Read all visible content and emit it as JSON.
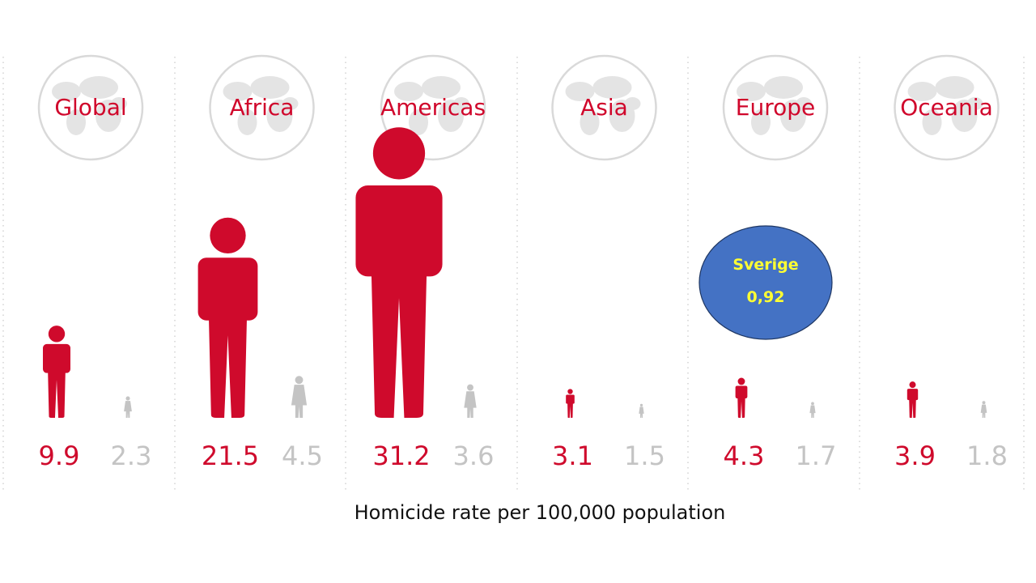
{
  "chart_data": {
    "type": "bar",
    "caption": "Homicide rate per 100,000 population",
    "categories": [
      "Global",
      "Africa",
      "Americas",
      "Asia",
      "Europe",
      "Oceania"
    ],
    "series": [
      {
        "values": [
          9.9,
          21.5,
          31.2,
          3.1,
          4.3,
          3.9
        ]
      },
      {
        "values": [
          2.3,
          4.5,
          3.6,
          1.5,
          1.7,
          1.8
        ]
      }
    ],
    "value_labels_male": [
      "9.9",
      "21.5",
      "31.2",
      "3.1",
      "4.3",
      "3.9"
    ],
    "value_labels_female": [
      "2.3",
      "4.5",
      "3.6",
      "1.5",
      "1.7",
      "1.8"
    ],
    "callout": {
      "label": "Sverige",
      "value": "0,92",
      "category": "Europe",
      "fill": "#4472c4",
      "text_color": "#ffff33"
    },
    "colors": {
      "male": "#cf0a2c",
      "female": "#c4c4c4",
      "label": "#d0062b",
      "globe": "#d9d9d9",
      "divider": "#c8c8c8"
    },
    "icons": {
      "region": "globe-map-icon",
      "male": "male-person-icon",
      "female": "female-person-icon"
    }
  }
}
